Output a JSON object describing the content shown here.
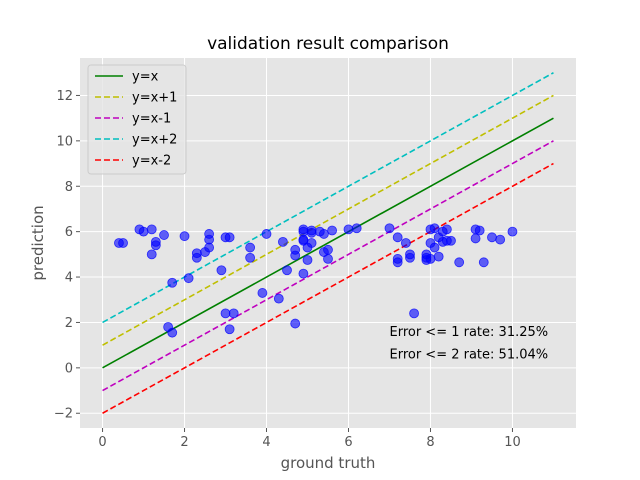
{
  "chart_data": {
    "type": "scatter",
    "title": "validation result comparison",
    "xlabel": "ground truth",
    "ylabel": "prediction",
    "xlim": [
      -0.55,
      11.55
    ],
    "ylim": [
      -2.65,
      13.65
    ],
    "xticks": [
      0,
      2,
      4,
      6,
      8,
      10
    ],
    "yticks": [
      -2,
      0,
      2,
      4,
      6,
      8,
      10,
      12
    ],
    "grid": true,
    "background": "#e5e5e5",
    "legend_position": "top-left",
    "reference_lines": [
      {
        "name": "y=x",
        "offset": 0,
        "color": "#008000",
        "dashed": false,
        "x_range": [
          0,
          11
        ]
      },
      {
        "name": "y=x+1",
        "offset": 1,
        "color": "#bfbf00",
        "dashed": true,
        "x_range": [
          0,
          11
        ]
      },
      {
        "name": "y=x-1",
        "offset": -1,
        "color": "#bf00bf",
        "dashed": true,
        "x_range": [
          0,
          11
        ]
      },
      {
        "name": "y=x+2",
        "offset": 2,
        "color": "#00bfbf",
        "dashed": true,
        "x_range": [
          0,
          11
        ]
      },
      {
        "name": "y=x-2",
        "offset": -2,
        "color": "#ff0000",
        "dashed": true,
        "x_range": [
          0,
          11
        ]
      }
    ],
    "series": [
      {
        "color": "#0000ff",
        "points": [
          [
            0.4,
            5.5
          ],
          [
            0.5,
            5.5
          ],
          [
            0.9,
            6.1
          ],
          [
            1.0,
            6.0
          ],
          [
            1.2,
            6.1
          ],
          [
            1.2,
            5.0
          ],
          [
            1.3,
            5.4
          ],
          [
            1.3,
            5.55
          ],
          [
            1.5,
            5.85
          ],
          [
            1.6,
            1.8
          ],
          [
            1.7,
            3.75
          ],
          [
            1.7,
            1.55
          ],
          [
            2.0,
            5.8
          ],
          [
            2.1,
            3.95
          ],
          [
            2.3,
            4.85
          ],
          [
            2.3,
            5.05
          ],
          [
            2.5,
            5.1
          ],
          [
            2.6,
            5.3
          ],
          [
            2.6,
            5.65
          ],
          [
            2.6,
            5.9
          ],
          [
            2.9,
            4.3
          ],
          [
            3.0,
            5.75
          ],
          [
            3.0,
            2.4
          ],
          [
            3.1,
            5.75
          ],
          [
            3.1,
            1.7
          ],
          [
            3.2,
            2.4
          ],
          [
            3.6,
            5.3
          ],
          [
            3.6,
            4.85
          ],
          [
            3.9,
            3.3
          ],
          [
            4.0,
            5.9
          ],
          [
            4.3,
            3.05
          ],
          [
            4.4,
            5.55
          ],
          [
            4.5,
            4.3
          ],
          [
            4.7,
            5.2
          ],
          [
            4.7,
            4.95
          ],
          [
            4.7,
            1.95
          ],
          [
            4.9,
            6.1
          ],
          [
            4.9,
            6.0
          ],
          [
            4.9,
            5.6
          ],
          [
            4.9,
            5.65
          ],
          [
            4.9,
            4.15
          ],
          [
            5.0,
            4.75
          ],
          [
            5.0,
            5.3
          ],
          [
            5.1,
            5.95
          ],
          [
            5.1,
            5.5
          ],
          [
            5.1,
            6.05
          ],
          [
            5.3,
            6.0
          ],
          [
            5.4,
            5.9
          ],
          [
            5.4,
            5.1
          ],
          [
            5.5,
            5.2
          ],
          [
            5.5,
            4.8
          ],
          [
            5.6,
            6.05
          ],
          [
            6.0,
            6.1
          ],
          [
            6.2,
            6.15
          ],
          [
            7.0,
            6.15
          ],
          [
            7.2,
            5.75
          ],
          [
            7.2,
            4.8
          ],
          [
            7.2,
            4.65
          ],
          [
            7.4,
            5.5
          ],
          [
            7.5,
            5.0
          ],
          [
            7.5,
            4.85
          ],
          [
            7.6,
            2.4
          ],
          [
            7.9,
            5.0
          ],
          [
            7.9,
            4.75
          ],
          [
            7.9,
            4.85
          ],
          [
            8.0,
            6.1
          ],
          [
            8.0,
            5.5
          ],
          [
            8.0,
            4.8
          ],
          [
            8.1,
            6.15
          ],
          [
            8.1,
            5.3
          ],
          [
            8.2,
            5.75
          ],
          [
            8.2,
            4.9
          ],
          [
            8.3,
            5.55
          ],
          [
            8.3,
            6.0
          ],
          [
            8.4,
            6.1
          ],
          [
            8.4,
            5.6
          ],
          [
            8.5,
            5.6
          ],
          [
            8.7,
            4.65
          ],
          [
            9.1,
            5.7
          ],
          [
            9.1,
            6.1
          ],
          [
            9.2,
            6.05
          ],
          [
            9.3,
            4.65
          ],
          [
            9.5,
            5.75
          ],
          [
            9.7,
            5.65
          ],
          [
            10.0,
            6.0
          ]
        ]
      }
    ],
    "annotations": [
      {
        "text": "Error <= 1 rate: 31.25%",
        "x": 7.0,
        "y": 1.6
      },
      {
        "text": "Error <= 2 rate: 51.04%",
        "x": 7.0,
        "y": 0.6
      }
    ]
  }
}
